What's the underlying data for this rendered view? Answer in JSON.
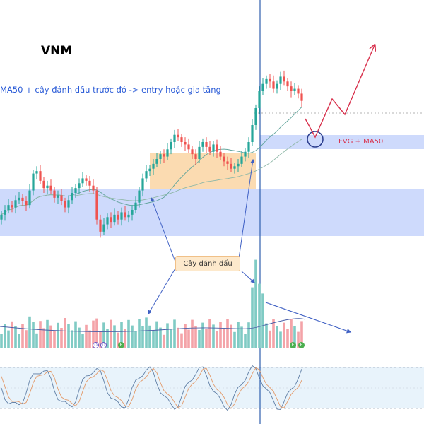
{
  "ticker": "VNM",
  "note": "MA50 + cây đánh dấu trước đó -> entry hoặc gia tăng",
  "fvg_label": "FVG + MA50",
  "marker_label": "Cây đánh dấu",
  "badges": [
    {
      "text": "D",
      "kind": "d"
    },
    {
      "text": "D",
      "kind": "d"
    },
    {
      "text": "E",
      "kind": "e"
    },
    {
      "text": "E",
      "kind": "e"
    },
    {
      "text": "E",
      "kind": "e"
    }
  ],
  "colors": {
    "up": "#26a69a",
    "down": "#ef5350",
    "zone": "#c5d3fb",
    "consolidation": "#fbd7a8",
    "annotation": "#3f60c4",
    "projection": "#d8304c",
    "oscillator_band": "#e8f3fb"
  },
  "chart_data": {
    "type": "candlestick",
    "series": [
      {
        "name": "price",
        "kind": "ohlc"
      },
      {
        "name": "moving average",
        "kind": "line"
      },
      {
        "name": "volume",
        "kind": "bar"
      },
      {
        "name": "oscillator",
        "kind": "line"
      }
    ],
    "candle_count": 86,
    "price_series": [
      {
        "o": 20,
        "c": 24
      },
      {
        "o": 24,
        "c": 28
      },
      {
        "o": 28,
        "c": 32
      },
      {
        "o": 32,
        "c": 30
      },
      {
        "o": 30,
        "c": 36
      },
      {
        "o": 36,
        "c": 38
      },
      {
        "o": 38,
        "c": 35
      },
      {
        "o": 35,
        "c": 32
      },
      {
        "o": 32,
        "c": 44
      },
      {
        "o": 44,
        "c": 58
      },
      {
        "o": 58,
        "c": 60
      },
      {
        "o": 60,
        "c": 52
      },
      {
        "o": 52,
        "c": 46
      },
      {
        "o": 46,
        "c": 48
      },
      {
        "o": 48,
        "c": 44
      },
      {
        "o": 44,
        "c": 38
      },
      {
        "o": 38,
        "c": 40
      },
      {
        "o": 40,
        "c": 35
      },
      {
        "o": 35,
        "c": 30
      },
      {
        "o": 30,
        "c": 36
      },
      {
        "o": 36,
        "c": 42
      },
      {
        "o": 42,
        "c": 46
      },
      {
        "o": 46,
        "c": 50
      },
      {
        "o": 50,
        "c": 54
      },
      {
        "o": 54,
        "c": 52
      },
      {
        "o": 52,
        "c": 48
      },
      {
        "o": 48,
        "c": 44
      },
      {
        "o": 44,
        "c": 20
      },
      {
        "o": 20,
        "c": 10
      },
      {
        "o": 10,
        "c": 16
      },
      {
        "o": 16,
        "c": 22
      },
      {
        "o": 22,
        "c": 18
      },
      {
        "o": 18,
        "c": 24
      },
      {
        "o": 24,
        "c": 20
      },
      {
        "o": 20,
        "c": 26
      },
      {
        "o": 26,
        "c": 22
      },
      {
        "o": 22,
        "c": 24
      },
      {
        "o": 24,
        "c": 28
      },
      {
        "o": 28,
        "c": 34
      },
      {
        "o": 34,
        "c": 44
      },
      {
        "o": 44,
        "c": 54
      },
      {
        "o": 54,
        "c": 60
      },
      {
        "o": 60,
        "c": 62
      },
      {
        "o": 62,
        "c": 66
      },
      {
        "o": 66,
        "c": 70
      },
      {
        "o": 70,
        "c": 74
      },
      {
        "o": 74,
        "c": 72
      },
      {
        "o": 72,
        "c": 78
      },
      {
        "o": 78,
        "c": 84
      },
      {
        "o": 84,
        "c": 90
      },
      {
        "o": 90,
        "c": 88
      },
      {
        "o": 88,
        "c": 84
      },
      {
        "o": 84,
        "c": 82
      },
      {
        "o": 82,
        "c": 78
      },
      {
        "o": 78,
        "c": 74
      },
      {
        "o": 74,
        "c": 70
      },
      {
        "o": 70,
        "c": 80
      },
      {
        "o": 80,
        "c": 84
      },
      {
        "o": 84,
        "c": 80
      },
      {
        "o": 80,
        "c": 76
      },
      {
        "o": 76,
        "c": 82
      },
      {
        "o": 82,
        "c": 76
      },
      {
        "o": 76,
        "c": 72
      },
      {
        "o": 72,
        "c": 68
      },
      {
        "o": 68,
        "c": 66
      },
      {
        "o": 66,
        "c": 62
      },
      {
        "o": 62,
        "c": 64
      },
      {
        "o": 64,
        "c": 66
      },
      {
        "o": 66,
        "c": 72
      },
      {
        "o": 72,
        "c": 76
      },
      {
        "o": 76,
        "c": 84
      },
      {
        "o": 84,
        "c": 98
      },
      {
        "o": 98,
        "c": 112
      },
      {
        "o": 112,
        "c": 126
      },
      {
        "o": 126,
        "c": 132
      },
      {
        "o": 132,
        "c": 136
      },
      {
        "o": 136,
        "c": 134
      },
      {
        "o": 134,
        "c": 128
      },
      {
        "o": 128,
        "c": 132
      },
      {
        "o": 132,
        "c": 138
      },
      {
        "o": 138,
        "c": 134
      },
      {
        "o": 134,
        "c": 130
      },
      {
        "o": 130,
        "c": 126
      },
      {
        "o": 126,
        "c": 128
      },
      {
        "o": 128,
        "c": 124
      },
      {
        "o": 124,
        "c": 118
      }
    ]
  }
}
